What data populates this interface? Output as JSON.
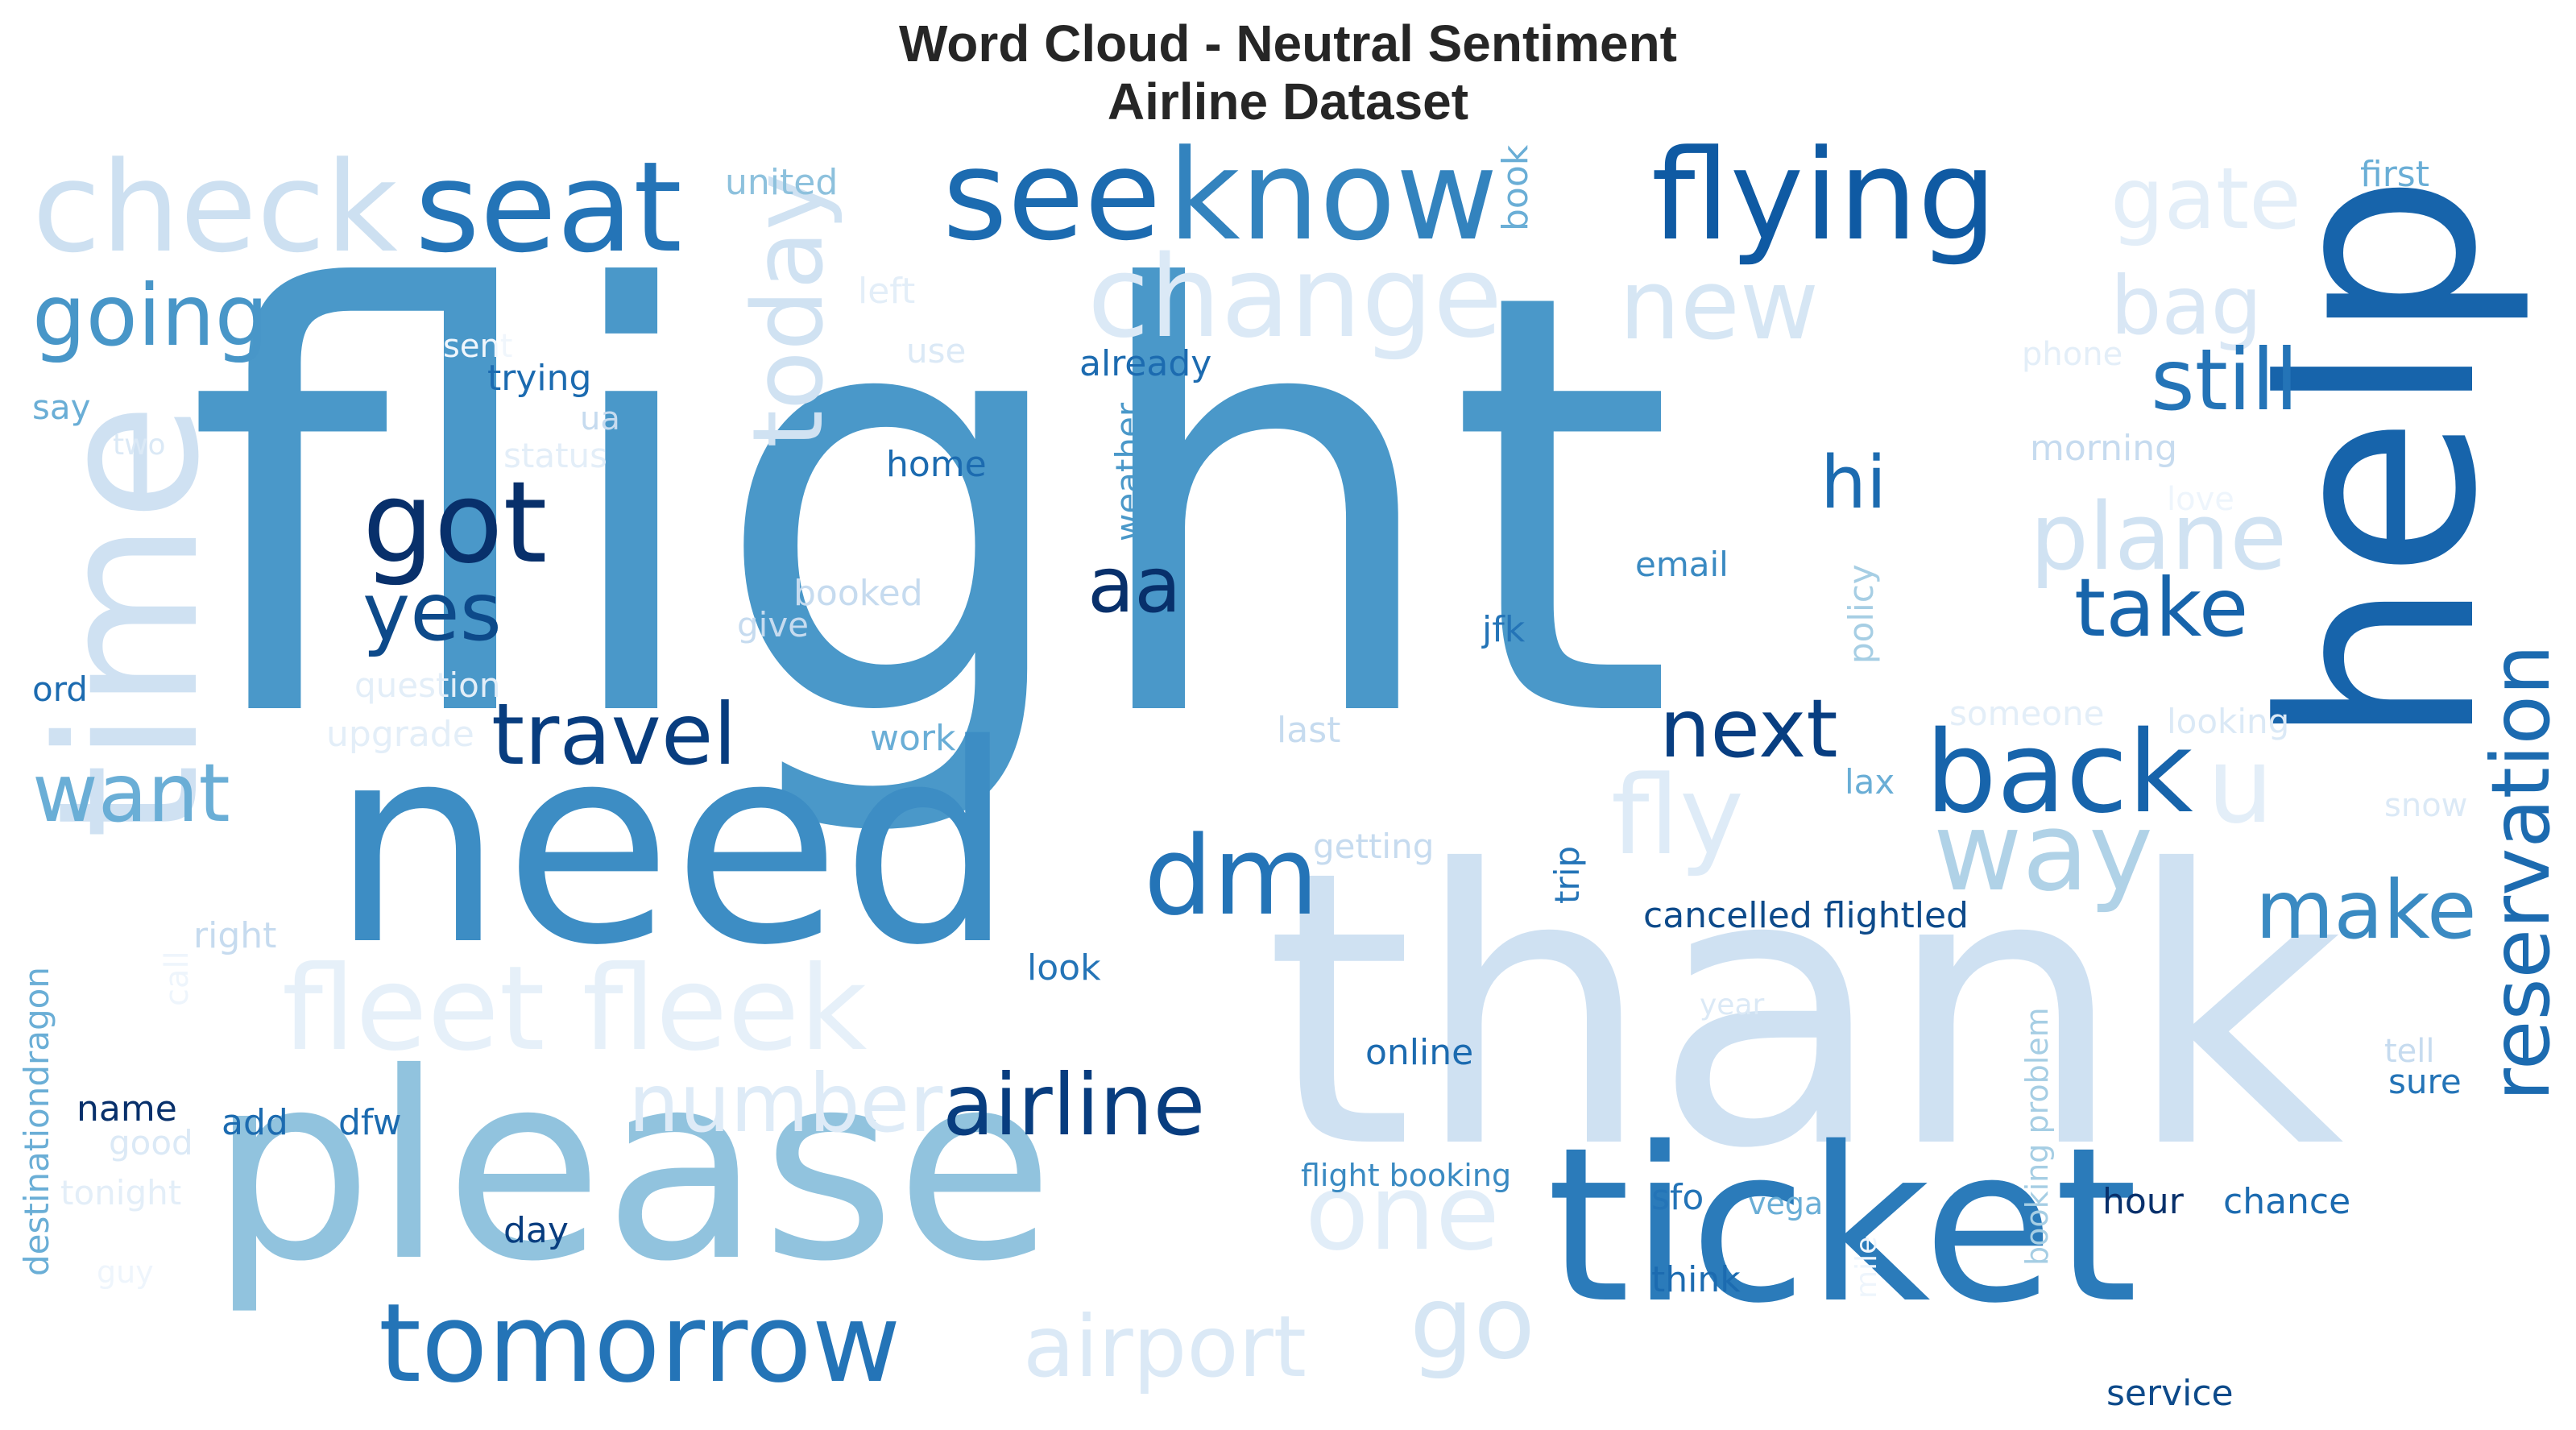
{
  "title": {
    "line1": "Word Cloud - Neutral Sentiment",
    "line2": "Airline Dataset"
  },
  "words": [
    {
      "text": "flight",
      "color": "#4a98c9"
    },
    {
      "text": "thank",
      "color": "#cfe1f2"
    },
    {
      "text": "help",
      "color": "#1764ab"
    },
    {
      "text": "need",
      "color": "#3d8dc4"
    },
    {
      "text": "please",
      "color": "#91c3de"
    },
    {
      "text": "time",
      "color": "#cfe1f2"
    },
    {
      "text": "ticket",
      "color": "#2b7bba"
    },
    {
      "text": "check",
      "color": "#cde0f1"
    },
    {
      "text": "seat",
      "color": "#2474b7"
    },
    {
      "text": "see",
      "color": "#1c6bb0"
    },
    {
      "text": "know",
      "color": "#3383be"
    },
    {
      "text": "flying",
      "color": "#0f5aa3"
    },
    {
      "text": "gate",
      "color": "#e3eef8"
    },
    {
      "text": "change",
      "color": "#dbe9f6"
    },
    {
      "text": "new",
      "color": "#d6e6f4"
    },
    {
      "text": "bag",
      "color": "#d9e7f5"
    },
    {
      "text": "going",
      "color": "#4896c8"
    },
    {
      "text": "today",
      "color": "#d0e2f2"
    },
    {
      "text": "still",
      "color": "#2474b7"
    },
    {
      "text": "got",
      "color": "#08306b"
    },
    {
      "text": "hi",
      "color": "#1c6bb0"
    },
    {
      "text": "plane",
      "color": "#d0e2f2"
    },
    {
      "text": "yes",
      "color": "#0d4a8a"
    },
    {
      "text": "aa",
      "color": "#08306b"
    },
    {
      "text": "take",
      "color": "#1764ab"
    },
    {
      "text": "travel",
      "color": "#083d7f"
    },
    {
      "text": "next",
      "color": "#083e81"
    },
    {
      "text": "back",
      "color": "#1764ab"
    },
    {
      "text": "want",
      "color": "#6aaed6"
    },
    {
      "text": "fly",
      "color": "#deebf7"
    },
    {
      "text": "u",
      "color": "#e3eef8"
    },
    {
      "text": "dm",
      "color": "#2474b7"
    },
    {
      "text": "way",
      "color": "#b0d2e7"
    },
    {
      "text": "reservation",
      "color": "#1c6bb0"
    },
    {
      "text": "fleet fleek",
      "color": "#e6f0f9"
    },
    {
      "text": "make",
      "color": "#3a8ac2"
    },
    {
      "text": "number",
      "color": "#deebf7"
    },
    {
      "text": "airline",
      "color": "#083d7f"
    },
    {
      "text": "one",
      "color": "#e1edf8"
    },
    {
      "text": "go",
      "color": "#d6e6f4"
    },
    {
      "text": "tomorrow",
      "color": "#2474b7"
    },
    {
      "text": "airport",
      "color": "#dbe9f6"
    },
    {
      "text": "united",
      "color": "#8dc1dd"
    },
    {
      "text": "book",
      "color": "#6aaed6"
    },
    {
      "text": "first",
      "color": "#6aaed6"
    },
    {
      "text": "left",
      "color": "#e3eef8"
    },
    {
      "text": "use",
      "color": "#dbe9f6"
    },
    {
      "text": "sent",
      "color": "#f0f6fc"
    },
    {
      "text": "trying",
      "color": "#1c6bb0"
    },
    {
      "text": "ua",
      "color": "#c6dbef"
    },
    {
      "text": "say",
      "color": "#6aaed6"
    },
    {
      "text": "two",
      "color": "#dbe9f6"
    },
    {
      "text": "status",
      "color": "#e3eef8"
    },
    {
      "text": "already",
      "color": "#1c6bb0"
    },
    {
      "text": "weather",
      "color": "#4a98c9"
    },
    {
      "text": "phone",
      "color": "#e3eef8"
    },
    {
      "text": "morning",
      "color": "#c6dbef"
    },
    {
      "text": "love",
      "color": "#eef5fc"
    },
    {
      "text": "home",
      "color": "#1c6bb0"
    },
    {
      "text": "email",
      "color": "#3a8ac2"
    },
    {
      "text": "policy",
      "color": "#a6cee4"
    },
    {
      "text": "booked",
      "color": "#c6dbef"
    },
    {
      "text": "give",
      "color": "#c6dbef"
    },
    {
      "text": "jfk",
      "color": "#2474b7"
    },
    {
      "text": "question",
      "color": "#e3eef8"
    },
    {
      "text": "ord",
      "color": "#1c6bb0"
    },
    {
      "text": "upgrade",
      "color": "#e3eef8"
    },
    {
      "text": "work",
      "color": "#6aaed6"
    },
    {
      "text": "last",
      "color": "#c6dbef"
    },
    {
      "text": "someone",
      "color": "#e3eef8"
    },
    {
      "text": "looking",
      "color": "#dbe9f6"
    },
    {
      "text": "lax",
      "color": "#6aaed6"
    },
    {
      "text": "snow",
      "color": "#dbe9f6"
    },
    {
      "text": "getting",
      "color": "#c6dbef"
    },
    {
      "text": "trip",
      "color": "#2474b7"
    },
    {
      "text": "cancelled flightled",
      "color": "#0d4a8a"
    },
    {
      "text": "call",
      "color": "#eef5fc"
    },
    {
      "text": "right",
      "color": "#c6dbef"
    },
    {
      "text": "destinationdragon",
      "color": "#6aaed6"
    },
    {
      "text": "look",
      "color": "#2474b7"
    },
    {
      "text": "year",
      "color": "#dbe9f6"
    },
    {
      "text": "online",
      "color": "#1c6bb0"
    },
    {
      "text": "tell",
      "color": "#c6dbef"
    },
    {
      "text": "sure",
      "color": "#2474b7"
    },
    {
      "text": "name",
      "color": "#08306b"
    },
    {
      "text": "add",
      "color": "#1c6bb0"
    },
    {
      "text": "dfw",
      "color": "#1c6bb0"
    },
    {
      "text": "good",
      "color": "#dbe9f6"
    },
    {
      "text": "tonight",
      "color": "#e3eef8"
    },
    {
      "text": "flight booking",
      "color": "#3a8ac2"
    },
    {
      "text": "booking problem",
      "color": "#a6cee4"
    },
    {
      "text": "sfo",
      "color": "#2474b7"
    },
    {
      "text": "vega",
      "color": "#6aaed6"
    },
    {
      "text": "hour",
      "color": "#08306b"
    },
    {
      "text": "chance",
      "color": "#1c6bb0"
    },
    {
      "text": "day",
      "color": "#083d7f"
    },
    {
      "text": "think",
      "color": "#1c6bb0"
    },
    {
      "text": "mile",
      "color": "#eef5fc"
    },
    {
      "text": "guy",
      "color": "#eef5fc"
    },
    {
      "text": "service",
      "color": "#0d4a8a"
    }
  ]
}
